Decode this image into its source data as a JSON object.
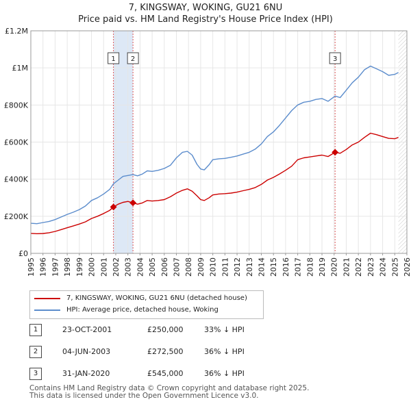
{
  "title": "7, KINGSWAY, WOKING, GU21 6NU",
  "subtitle": "Price paid vs. HM Land Registry's House Price Index (HPI)",
  "colors": {
    "property": "#cc0000",
    "hpi": "#5b8ccc",
    "shade": "#dde8f6",
    "marker_line": "#dd5555"
  },
  "chart_data": {
    "type": "line",
    "title": "7, KINGSWAY, WOKING, GU21 6NU",
    "subtitle": "Price paid vs. HM Land Registry's House Price Index (HPI)",
    "xlim": [
      1995,
      2026
    ],
    "ylim": [
      0,
      1200000
    ],
    "x_ticks": [
      "1995",
      "1996",
      "1997",
      "1998",
      "1999",
      "2000",
      "2001",
      "2002",
      "2003",
      "2004",
      "2005",
      "2006",
      "2007",
      "2008",
      "2009",
      "2010",
      "2011",
      "2012",
      "2013",
      "2014",
      "2015",
      "2016",
      "2017",
      "2018",
      "2019",
      "2020",
      "2021",
      "2022",
      "2023",
      "2024",
      "2025",
      "2026"
    ],
    "y_ticks": [
      {
        "value": 0,
        "label": "£0"
      },
      {
        "value": 200000,
        "label": "£200K"
      },
      {
        "value": 400000,
        "label": "£400K"
      },
      {
        "value": 600000,
        "label": "£600K"
      },
      {
        "value": 800000,
        "label": "£800K"
      },
      {
        "value": 1000000,
        "label": "£1M"
      },
      {
        "value": 1200000,
        "label": "£1.2M"
      }
    ],
    "series": [
      {
        "name": "7, KINGSWAY, WOKING, GU21 6NU (detached house)",
        "color": "#cc0000",
        "points": [
          [
            1995.0,
            108000
          ],
          [
            1995.5,
            106000
          ],
          [
            1996.0,
            107000
          ],
          [
            1996.5,
            111000
          ],
          [
            1997.0,
            118000
          ],
          [
            1997.5,
            128000
          ],
          [
            1998.0,
            138000
          ],
          [
            1998.5,
            148000
          ],
          [
            1999.0,
            158000
          ],
          [
            1999.5,
            170000
          ],
          [
            2000.0,
            188000
          ],
          [
            2000.5,
            200000
          ],
          [
            2001.0,
            215000
          ],
          [
            2001.5,
            232000
          ],
          [
            2001.81,
            250000
          ],
          [
            2002.2,
            265000
          ],
          [
            2002.6,
            275000
          ],
          [
            2003.0,
            280000
          ],
          [
            2003.42,
            272500
          ],
          [
            2003.8,
            265000
          ],
          [
            2004.2,
            272000
          ],
          [
            2004.6,
            285000
          ],
          [
            2005.0,
            282000
          ],
          [
            2005.5,
            285000
          ],
          [
            2006.0,
            290000
          ],
          [
            2006.5,
            305000
          ],
          [
            2007.0,
            325000
          ],
          [
            2007.5,
            340000
          ],
          [
            2007.9,
            348000
          ],
          [
            2008.3,
            335000
          ],
          [
            2008.7,
            310000
          ],
          [
            2009.0,
            290000
          ],
          [
            2009.3,
            285000
          ],
          [
            2009.7,
            300000
          ],
          [
            2010.0,
            315000
          ],
          [
            2010.5,
            320000
          ],
          [
            2011.0,
            322000
          ],
          [
            2011.5,
            325000
          ],
          [
            2012.0,
            330000
          ],
          [
            2012.5,
            338000
          ],
          [
            2013.0,
            345000
          ],
          [
            2013.5,
            355000
          ],
          [
            2014.0,
            372000
          ],
          [
            2014.5,
            395000
          ],
          [
            2015.0,
            410000
          ],
          [
            2015.5,
            428000
          ],
          [
            2016.0,
            448000
          ],
          [
            2016.5,
            470000
          ],
          [
            2017.0,
            505000
          ],
          [
            2017.5,
            515000
          ],
          [
            2018.0,
            520000
          ],
          [
            2018.5,
            525000
          ],
          [
            2019.0,
            530000
          ],
          [
            2019.5,
            522000
          ],
          [
            2020.08,
            545000
          ],
          [
            2020.5,
            540000
          ],
          [
            2021.0,
            560000
          ],
          [
            2021.5,
            585000
          ],
          [
            2022.0,
            600000
          ],
          [
            2022.5,
            625000
          ],
          [
            2023.0,
            648000
          ],
          [
            2023.5,
            640000
          ],
          [
            2024.0,
            630000
          ],
          [
            2024.5,
            620000
          ],
          [
            2025.0,
            618000
          ],
          [
            2025.3,
            625000
          ]
        ]
      },
      {
        "name": "HPI: Average price, detached house, Woking",
        "color": "#5b8ccc",
        "points": [
          [
            1995.0,
            162000
          ],
          [
            1995.5,
            160000
          ],
          [
            1996.0,
            166000
          ],
          [
            1996.5,
            172000
          ],
          [
            1997.0,
            182000
          ],
          [
            1997.5,
            196000
          ],
          [
            1998.0,
            210000
          ],
          [
            1998.5,
            222000
          ],
          [
            1999.0,
            236000
          ],
          [
            1999.5,
            255000
          ],
          [
            2000.0,
            285000
          ],
          [
            2000.5,
            300000
          ],
          [
            2001.0,
            320000
          ],
          [
            2001.5,
            345000
          ],
          [
            2001.81,
            375000
          ],
          [
            2002.2,
            395000
          ],
          [
            2002.6,
            415000
          ],
          [
            2003.0,
            420000
          ],
          [
            2003.42,
            425000
          ],
          [
            2003.8,
            418000
          ],
          [
            2004.2,
            428000
          ],
          [
            2004.6,
            445000
          ],
          [
            2005.0,
            442000
          ],
          [
            2005.5,
            448000
          ],
          [
            2006.0,
            458000
          ],
          [
            2006.5,
            475000
          ],
          [
            2007.0,
            515000
          ],
          [
            2007.5,
            545000
          ],
          [
            2007.9,
            550000
          ],
          [
            2008.3,
            530000
          ],
          [
            2008.7,
            480000
          ],
          [
            2009.0,
            455000
          ],
          [
            2009.3,
            450000
          ],
          [
            2009.7,
            478000
          ],
          [
            2010.0,
            505000
          ],
          [
            2010.5,
            510000
          ],
          [
            2011.0,
            512000
          ],
          [
            2011.5,
            518000
          ],
          [
            2012.0,
            525000
          ],
          [
            2012.5,
            535000
          ],
          [
            2013.0,
            545000
          ],
          [
            2013.5,
            562000
          ],
          [
            2014.0,
            590000
          ],
          [
            2014.5,
            630000
          ],
          [
            2015.0,
            655000
          ],
          [
            2015.5,
            690000
          ],
          [
            2016.0,
            730000
          ],
          [
            2016.5,
            770000
          ],
          [
            2017.0,
            800000
          ],
          [
            2017.5,
            815000
          ],
          [
            2018.0,
            820000
          ],
          [
            2018.5,
            830000
          ],
          [
            2019.0,
            835000
          ],
          [
            2019.5,
            820000
          ],
          [
            2020.08,
            848000
          ],
          [
            2020.5,
            840000
          ],
          [
            2021.0,
            880000
          ],
          [
            2021.5,
            920000
          ],
          [
            2022.0,
            950000
          ],
          [
            2022.5,
            990000
          ],
          [
            2023.0,
            1010000
          ],
          [
            2023.5,
            995000
          ],
          [
            2024.0,
            980000
          ],
          [
            2024.5,
            960000
          ],
          [
            2025.0,
            965000
          ],
          [
            2025.3,
            975000
          ]
        ]
      }
    ],
    "sales": [
      {
        "num": "1",
        "x": 2001.81,
        "price_value": 250000
      },
      {
        "num": "2",
        "x": 2003.42,
        "price_value": 272500
      },
      {
        "num": "3",
        "x": 2020.08,
        "price_value": 545000
      }
    ],
    "shaded_range": [
      2001.81,
      2003.42
    ],
    "hatched_from": 2025.3
  },
  "legend": {
    "property": "7, KINGSWAY, WOKING, GU21 6NU (detached house)",
    "hpi": "HPI: Average price, detached house, Woking"
  },
  "sales_table": [
    {
      "num": "1",
      "date": "23-OCT-2001",
      "price": "£250,000",
      "hpi": "33% ↓ HPI"
    },
    {
      "num": "2",
      "date": "04-JUN-2003",
      "price": "£272,500",
      "hpi": "36% ↓ HPI"
    },
    {
      "num": "3",
      "date": "31-JAN-2020",
      "price": "£545,000",
      "hpi": "36% ↓ HPI"
    }
  ],
  "footer": {
    "line1": "Contains HM Land Registry data © Crown copyright and database right 2025.",
    "line2": "This data is licensed under the Open Government Licence v3.0."
  }
}
